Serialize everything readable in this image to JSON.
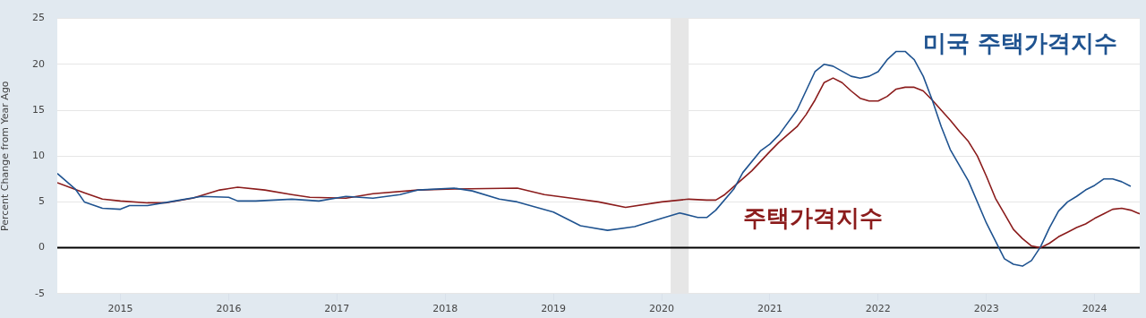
{
  "chart_data": {
    "type": "line",
    "ylabel": "Percent Change from Year Ago",
    "xlim": [
      "2014-06",
      "2024-06"
    ],
    "xticks": [
      "2015",
      "2016",
      "2017",
      "2018",
      "2019",
      "2020",
      "2021",
      "2022",
      "2023",
      "2024"
    ],
    "ylim": [
      -5,
      25
    ],
    "yticks": [
      -5,
      0,
      5,
      10,
      15,
      20,
      25
    ],
    "grid": "y",
    "legend": false,
    "marker": "none",
    "line_style": "solid",
    "bands": [
      {
        "axis": "x",
        "from": "2020-02",
        "to": "2020-04",
        "color": "#e6e6e6"
      }
    ],
    "ref_lines": [
      {
        "axis": "y",
        "value": 0,
        "color": "#000000"
      }
    ],
    "series": [
      {
        "name": "미국 주택가격지수",
        "color": "#1f5390",
        "x": [
          "2014-06",
          "2014-08",
          "2014-09",
          "2014-11",
          "2015-01",
          "2015-02",
          "2015-04",
          "2015-07",
          "2015-10",
          "2016-01",
          "2016-02",
          "2016-04",
          "2016-08",
          "2016-11",
          "2017-02",
          "2017-05",
          "2017-08",
          "2017-10",
          "2018-02",
          "2018-04",
          "2018-07",
          "2018-09",
          "2019-01",
          "2019-04",
          "2019-07",
          "2019-10",
          "2020-01",
          "2020-03",
          "2020-05",
          "2020-06",
          "2020-07",
          "2020-09",
          "2020-10",
          "2020-12",
          "2021-01",
          "2021-02",
          "2021-04",
          "2021-06",
          "2021-07",
          "2021-08",
          "2021-10",
          "2021-11",
          "2021-12",
          "2022-01",
          "2022-02",
          "2022-03",
          "2022-04",
          "2022-05",
          "2022-06",
          "2022-07",
          "2022-08",
          "2022-09",
          "2022-11",
          "2023-01",
          "2023-03",
          "2023-04",
          "2023-05",
          "2023-06",
          "2023-07",
          "2023-08",
          "2023-09",
          "2023-10",
          "2023-11",
          "2023-12",
          "2024-01",
          "2024-02",
          "2024-03",
          "2024-04",
          "2024-05"
        ],
        "values": [
          8.1,
          6.4,
          5.0,
          4.3,
          4.2,
          4.6,
          4.6,
          5.1,
          5.6,
          5.5,
          5.1,
          5.1,
          5.3,
          5.1,
          5.6,
          5.4,
          5.8,
          6.3,
          6.5,
          6.2,
          5.3,
          5.0,
          3.9,
          2.4,
          1.9,
          2.3,
          3.2,
          3.8,
          3.3,
          3.3,
          4.1,
          6.4,
          8.2,
          10.6,
          11.3,
          12.3,
          15.0,
          19.2,
          20.0,
          19.8,
          18.7,
          18.5,
          18.7,
          19.2,
          20.5,
          21.4,
          21.4,
          20.5,
          18.7,
          16.1,
          13.2,
          10.7,
          7.3,
          2.7,
          -1.2,
          -1.8,
          -2.0,
          -1.4,
          0.1,
          2.2,
          4.0,
          5.0,
          5.6,
          6.3,
          6.8,
          7.5,
          7.5,
          7.2,
          6.7
        ]
      },
      {
        "name": "주택가격지수",
        "color": "#8b1c1c",
        "x": [
          "2014-06",
          "2014-09",
          "2014-11",
          "2015-01",
          "2015-04",
          "2015-06",
          "2015-09",
          "2015-12",
          "2016-02",
          "2016-05",
          "2016-08",
          "2016-10",
          "2017-02",
          "2017-05",
          "2017-10",
          "2018-02",
          "2018-09",
          "2018-12",
          "2019-03",
          "2019-06",
          "2019-09",
          "2020-01",
          "2020-04",
          "2020-06",
          "2020-07",
          "2020-08",
          "2020-11",
          "2021-01",
          "2021-02",
          "2021-04",
          "2021-05",
          "2021-06",
          "2021-07",
          "2021-08",
          "2021-09",
          "2021-10",
          "2021-11",
          "2021-12",
          "2022-01",
          "2022-02",
          "2022-03",
          "2022-04",
          "2022-05",
          "2022-06",
          "2022-07",
          "2022-08",
          "2022-09",
          "2022-10",
          "2022-11",
          "2022-12",
          "2023-01",
          "2023-02",
          "2023-03",
          "2023-04",
          "2023-05",
          "2023-06",
          "2023-07",
          "2023-08",
          "2023-09",
          "2023-10",
          "2023-11",
          "2023-12",
          "2024-01",
          "2024-02",
          "2024-03",
          "2024-04",
          "2024-05",
          "2024-06"
        ],
        "values": [
          7.1,
          6.0,
          5.3,
          5.1,
          4.9,
          4.9,
          5.4,
          6.3,
          6.6,
          6.3,
          5.8,
          5.5,
          5.4,
          5.9,
          6.3,
          6.4,
          6.5,
          5.8,
          5.4,
          5.0,
          4.4,
          5.0,
          5.3,
          5.2,
          5.2,
          5.8,
          8.4,
          10.5,
          11.5,
          13.2,
          14.5,
          16.1,
          18.0,
          18.5,
          18.0,
          17.1,
          16.3,
          16.0,
          16.0,
          16.5,
          17.3,
          17.5,
          17.5,
          17.1,
          16.1,
          15.0,
          13.9,
          12.7,
          11.6,
          10.0,
          7.8,
          5.4,
          3.7,
          2.0,
          1.0,
          0.2,
          0.0,
          0.5,
          1.2,
          1.7,
          2.2,
          2.6,
          3.2,
          3.7,
          4.2,
          4.3,
          4.1,
          3.7
        ]
      }
    ]
  }
}
